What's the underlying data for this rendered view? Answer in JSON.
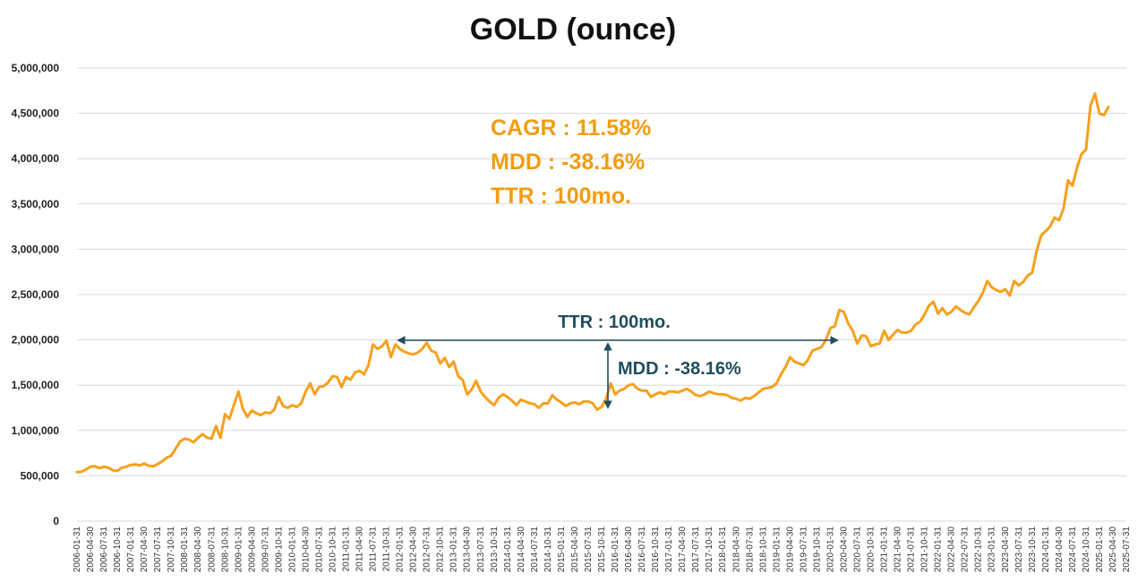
{
  "chart_data": {
    "type": "line",
    "title": "GOLD (ounce)",
    "xlabel": "",
    "ylabel": "",
    "ylim": [
      0,
      5000000
    ],
    "yticks": [
      "0",
      "500,000",
      "1,000,000",
      "1,500,000",
      "2,000,000",
      "2,500,000",
      "3,000,000",
      "3,500,000",
      "4,000,000",
      "4,500,000",
      "5,000,000"
    ],
    "xticks": [
      "2006-01-31",
      "2006-04-30",
      "2006-07-31",
      "2006-10-31",
      "2007-01-31",
      "2007-04-30",
      "2007-07-31",
      "2007-10-31",
      "2008-01-31",
      "2008-04-30",
      "2008-07-31",
      "2008-10-31",
      "2009-01-31",
      "2009-04-30",
      "2009-07-31",
      "2009-10-31",
      "2010-01-31",
      "2010-04-30",
      "2010-07-31",
      "2010-10-31",
      "2011-01-31",
      "2011-04-30",
      "2011-07-31",
      "2011-10-31",
      "2012-01-31",
      "2012-04-30",
      "2012-07-31",
      "2012-10-31",
      "2013-01-31",
      "2013-04-30",
      "2013-07-31",
      "2013-10-31",
      "2014-01-31",
      "2014-04-30",
      "2014-07-31",
      "2014-10-31",
      "2015-01-31",
      "2015-04-30",
      "2015-07-31",
      "2015-10-31",
      "2016-01-31",
      "2016-04-30",
      "2016-07-31",
      "2016-10-31",
      "2017-01-31",
      "2017-04-30",
      "2017-07-31",
      "2017-10-31",
      "2018-01-31",
      "2018-04-30",
      "2018-07-31",
      "2018-10-31",
      "2019-01-31",
      "2019-04-30",
      "2019-07-31",
      "2019-10-31",
      "2020-01-31",
      "2020-04-30",
      "2020-07-31",
      "2020-10-31",
      "2021-01-31",
      "2021-04-30",
      "2021-07-31",
      "2021-10-31",
      "2022-01-31",
      "2022-04-30",
      "2022-07-31",
      "2022-10-31",
      "2023-01-31",
      "2023-04-30",
      "2023-07-31",
      "2023-10-31",
      "2024-01-31",
      "2024-04-30",
      "2024-07-31",
      "2024-10-31",
      "2025-01-31",
      "2025-04-30",
      "2025-07-31"
    ],
    "grid": true,
    "legend": "none",
    "series": [
      {
        "color": "#f7a01d",
        "start": "2006-01",
        "values": [
          540000,
          545000,
          570000,
          600000,
          605000,
          585000,
          600000,
          590000,
          560000,
          555000,
          590000,
          600000,
          620000,
          625000,
          615000,
          635000,
          610000,
          605000,
          630000,
          660000,
          700000,
          720000,
          800000,
          880000,
          910000,
          900000,
          870000,
          920000,
          960000,
          920000,
          910000,
          1050000,
          920000,
          1180000,
          1130000,
          1280000,
          1430000,
          1240000,
          1150000,
          1220000,
          1190000,
          1170000,
          1200000,
          1190000,
          1230000,
          1370000,
          1270000,
          1250000,
          1280000,
          1260000,
          1300000,
          1430000,
          1520000,
          1400000,
          1480000,
          1490000,
          1530000,
          1600000,
          1590000,
          1480000,
          1590000,
          1560000,
          1640000,
          1660000,
          1620000,
          1720000,
          1950000,
          1900000,
          1930000,
          1990000,
          1810000,
          1950000,
          1900000,
          1870000,
          1850000,
          1840000,
          1860000,
          1900000,
          1970000,
          1880000,
          1860000,
          1740000,
          1800000,
          1700000,
          1760000,
          1600000,
          1560000,
          1400000,
          1450000,
          1550000,
          1430000,
          1370000,
          1320000,
          1280000,
          1360000,
          1400000,
          1370000,
          1330000,
          1280000,
          1340000,
          1320000,
          1300000,
          1290000,
          1250000,
          1300000,
          1300000,
          1390000,
          1340000,
          1310000,
          1270000,
          1300000,
          1310000,
          1290000,
          1320000,
          1320000,
          1300000,
          1230000,
          1260000,
          1350000,
          1520000,
          1400000,
          1440000,
          1460000,
          1500000,
          1510000,
          1460000,
          1440000,
          1440000,
          1370000,
          1400000,
          1420000,
          1400000,
          1430000,
          1430000,
          1420000,
          1440000,
          1460000,
          1430000,
          1390000,
          1380000,
          1400000,
          1430000,
          1410000,
          1400000,
          1400000,
          1390000,
          1360000,
          1350000,
          1330000,
          1360000,
          1350000,
          1380000,
          1420000,
          1460000,
          1470000,
          1480000,
          1520000,
          1620000,
          1700000,
          1810000,
          1760000,
          1740000,
          1720000,
          1780000,
          1880000,
          1900000,
          1920000,
          2000000,
          2130000,
          2150000,
          2330000,
          2310000,
          2180000,
          2100000,
          1960000,
          2050000,
          2040000,
          1930000,
          1950000,
          1960000,
          2100000,
          2000000,
          2060000,
          2110000,
          2080000,
          2080000,
          2100000,
          2170000,
          2200000,
          2280000,
          2380000,
          2420000,
          2290000,
          2350000,
          2280000,
          2310000,
          2370000,
          2330000,
          2300000,
          2280000,
          2360000,
          2430000,
          2520000,
          2650000,
          2580000,
          2550000,
          2530000,
          2560000,
          2490000,
          2650000,
          2600000,
          2640000,
          2710000,
          2740000,
          2980000,
          3150000,
          3200000,
          3250000,
          3350000,
          3320000,
          3450000,
          3760000,
          3700000,
          3900000,
          4050000,
          4100000,
          4580000,
          4720000,
          4500000,
          4480000,
          4570000
        ]
      }
    ]
  },
  "annotations": {
    "cagr": "CAGR : 11.58%",
    "mdd": "MDD : -38.16%",
    "ttr": "TTR : 100mo.",
    "ttr_arrow_label": "TTR : 100mo.",
    "mdd_arrow_label": "MDD : -38.16%"
  },
  "colors": {
    "line": "#f7a01d",
    "stats_text": "#f39c12",
    "annotation": "#1f4e5f"
  }
}
